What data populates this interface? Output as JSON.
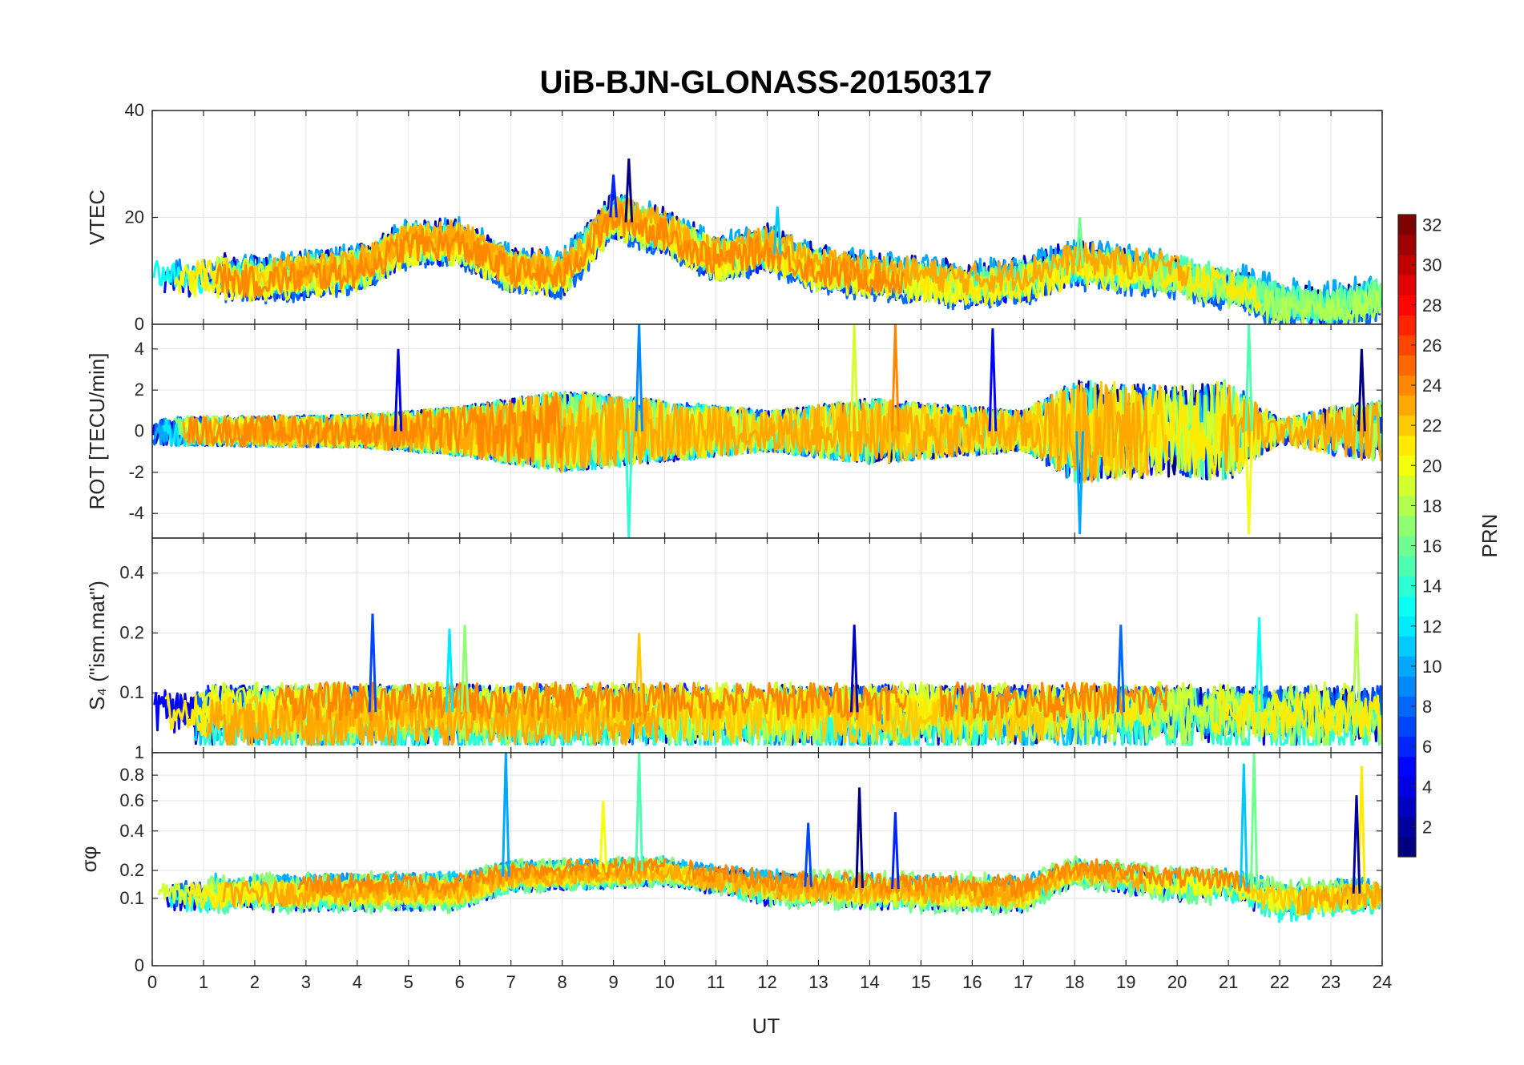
{
  "chart_data": {
    "type": "line",
    "title": "UiB-BJN-GLONASS-20150317",
    "xlabel": "UT",
    "x_ticks": [
      "0",
      "1",
      "2",
      "3",
      "4",
      "5",
      "6",
      "7",
      "8",
      "9",
      "10",
      "11",
      "12",
      "13",
      "14",
      "15",
      "16",
      "17",
      "18",
      "19",
      "20",
      "21",
      "22",
      "23",
      "24"
    ],
    "xlim": [
      0,
      24
    ],
    "grid": true,
    "panels": [
      {
        "ylabel": "VTEC",
        "ylim": [
          0,
          40
        ],
        "y_ticks": [
          "0",
          "20",
          "40"
        ],
        "y_tick_values": [
          0,
          20,
          40
        ],
        "trend": [
          [
            0,
            10
          ],
          [
            2,
            8
          ],
          [
            4,
            10
          ],
          [
            5,
            15
          ],
          [
            6,
            15
          ],
          [
            7,
            10
          ],
          [
            8,
            9
          ],
          [
            9,
            20
          ],
          [
            10,
            17
          ],
          [
            11,
            12
          ],
          [
            12,
            14
          ],
          [
            13,
            10
          ],
          [
            14,
            9
          ],
          [
            15,
            8
          ],
          [
            16,
            7
          ],
          [
            17,
            8
          ],
          [
            18,
            11
          ],
          [
            19,
            10
          ],
          [
            20,
            9
          ],
          [
            21,
            7
          ],
          [
            22,
            4
          ],
          [
            23,
            3
          ],
          [
            24,
            5
          ]
        ],
        "noise": 3,
        "spikes": [
          [
            9.3,
            31
          ],
          [
            9.0,
            28
          ],
          [
            12.2,
            22
          ],
          [
            18.1,
            20
          ]
        ]
      },
      {
        "ylabel": "ROT [TECU/min]",
        "ylim": [
          -5.2,
          5.2
        ],
        "y_ticks": [
          "-4",
          "-2",
          "0",
          "2",
          "4"
        ],
        "y_tick_values": [
          -4,
          -2,
          0,
          2,
          4
        ],
        "trend": [
          [
            0,
            0
          ],
          [
            24,
            0
          ]
        ],
        "noise_profile": [
          [
            0,
            0.7
          ],
          [
            4,
            0.8
          ],
          [
            6,
            1.2
          ],
          [
            8,
            2.0
          ],
          [
            10,
            1.5
          ],
          [
            12,
            1.0
          ],
          [
            14,
            1.6
          ],
          [
            17,
            1.0
          ],
          [
            18,
            2.5
          ],
          [
            20,
            2.2
          ],
          [
            21,
            2.5
          ],
          [
            22,
            0.6
          ],
          [
            23,
            1.2
          ],
          [
            24,
            1.5
          ]
        ],
        "spikes": [
          [
            4.8,
            4
          ],
          [
            9.5,
            5.2
          ],
          [
            9.3,
            -5.2
          ],
          [
            13.7,
            5.2
          ],
          [
            14.5,
            5.2
          ],
          [
            16.4,
            5
          ],
          [
            18.1,
            -5
          ],
          [
            21.4,
            5.2
          ],
          [
            21.4,
            -5
          ],
          [
            23.6,
            4
          ]
        ]
      },
      {
        "ylabel": "S₄ (\"ism.mat\")",
        "ylim": [
          0.05,
          0.6
        ],
        "y_ticks": [
          "0.1",
          "0.2",
          "0.4"
        ],
        "y_tick_values": [
          0.1,
          0.2,
          0.4
        ],
        "log": true,
        "trend": [
          [
            0,
            0.08
          ],
          [
            24,
            0.08
          ]
        ],
        "noise": 0.02,
        "spikes": [
          [
            4.3,
            0.25
          ],
          [
            5.8,
            0.21
          ],
          [
            6.1,
            0.22
          ],
          [
            9.5,
            0.2
          ],
          [
            13.7,
            0.22
          ],
          [
            18.9,
            0.22
          ],
          [
            21.6,
            0.24
          ],
          [
            23.5,
            0.25
          ]
        ]
      },
      {
        "ylabel": "σφ",
        "ylim": [
          0,
          1
        ],
        "y_ticks": [
          "0",
          "0.1",
          "0.2",
          "0.4",
          "0.6",
          "0.8",
          "1"
        ],
        "y_tick_values": [
          0,
          0.1,
          0.2,
          0.4,
          0.6,
          0.8,
          1
        ],
        "sqrt": true,
        "trend": [
          [
            0,
            0.12
          ],
          [
            6,
            0.13
          ],
          [
            7,
            0.18
          ],
          [
            10,
            0.2
          ],
          [
            12,
            0.14
          ],
          [
            17,
            0.12
          ],
          [
            18,
            0.2
          ],
          [
            20,
            0.15
          ],
          [
            21,
            0.15
          ],
          [
            22,
            0.1
          ],
          [
            24,
            0.12
          ]
        ],
        "noise": 0.04,
        "spikes": [
          [
            6.9,
            1.0
          ],
          [
            9.5,
            1.0
          ],
          [
            8.8,
            0.6
          ],
          [
            13.8,
            0.7
          ],
          [
            14.5,
            0.52
          ],
          [
            21.3,
            0.9
          ],
          [
            21.5,
            1.0
          ],
          [
            23.6,
            0.88
          ],
          [
            23.5,
            0.64
          ],
          [
            12.8,
            0.45
          ]
        ]
      }
    ],
    "colorbar": {
      "label": "PRN",
      "min": 1,
      "max": 32,
      "ticks": [
        "2",
        "4",
        "6",
        "8",
        "10",
        "12",
        "14",
        "16",
        "18",
        "20",
        "22",
        "24",
        "26",
        "28",
        "30",
        "32"
      ],
      "tick_values": [
        2,
        4,
        6,
        8,
        10,
        12,
        14,
        16,
        18,
        20,
        22,
        24,
        26,
        28,
        30,
        32
      ],
      "colormap": "jet"
    },
    "series_prns": [
      1,
      2,
      3,
      4,
      5,
      6,
      7,
      8,
      9,
      10,
      11,
      12,
      13,
      14,
      15,
      16,
      17,
      18,
      19,
      20,
      21,
      22,
      23,
      24
    ]
  }
}
